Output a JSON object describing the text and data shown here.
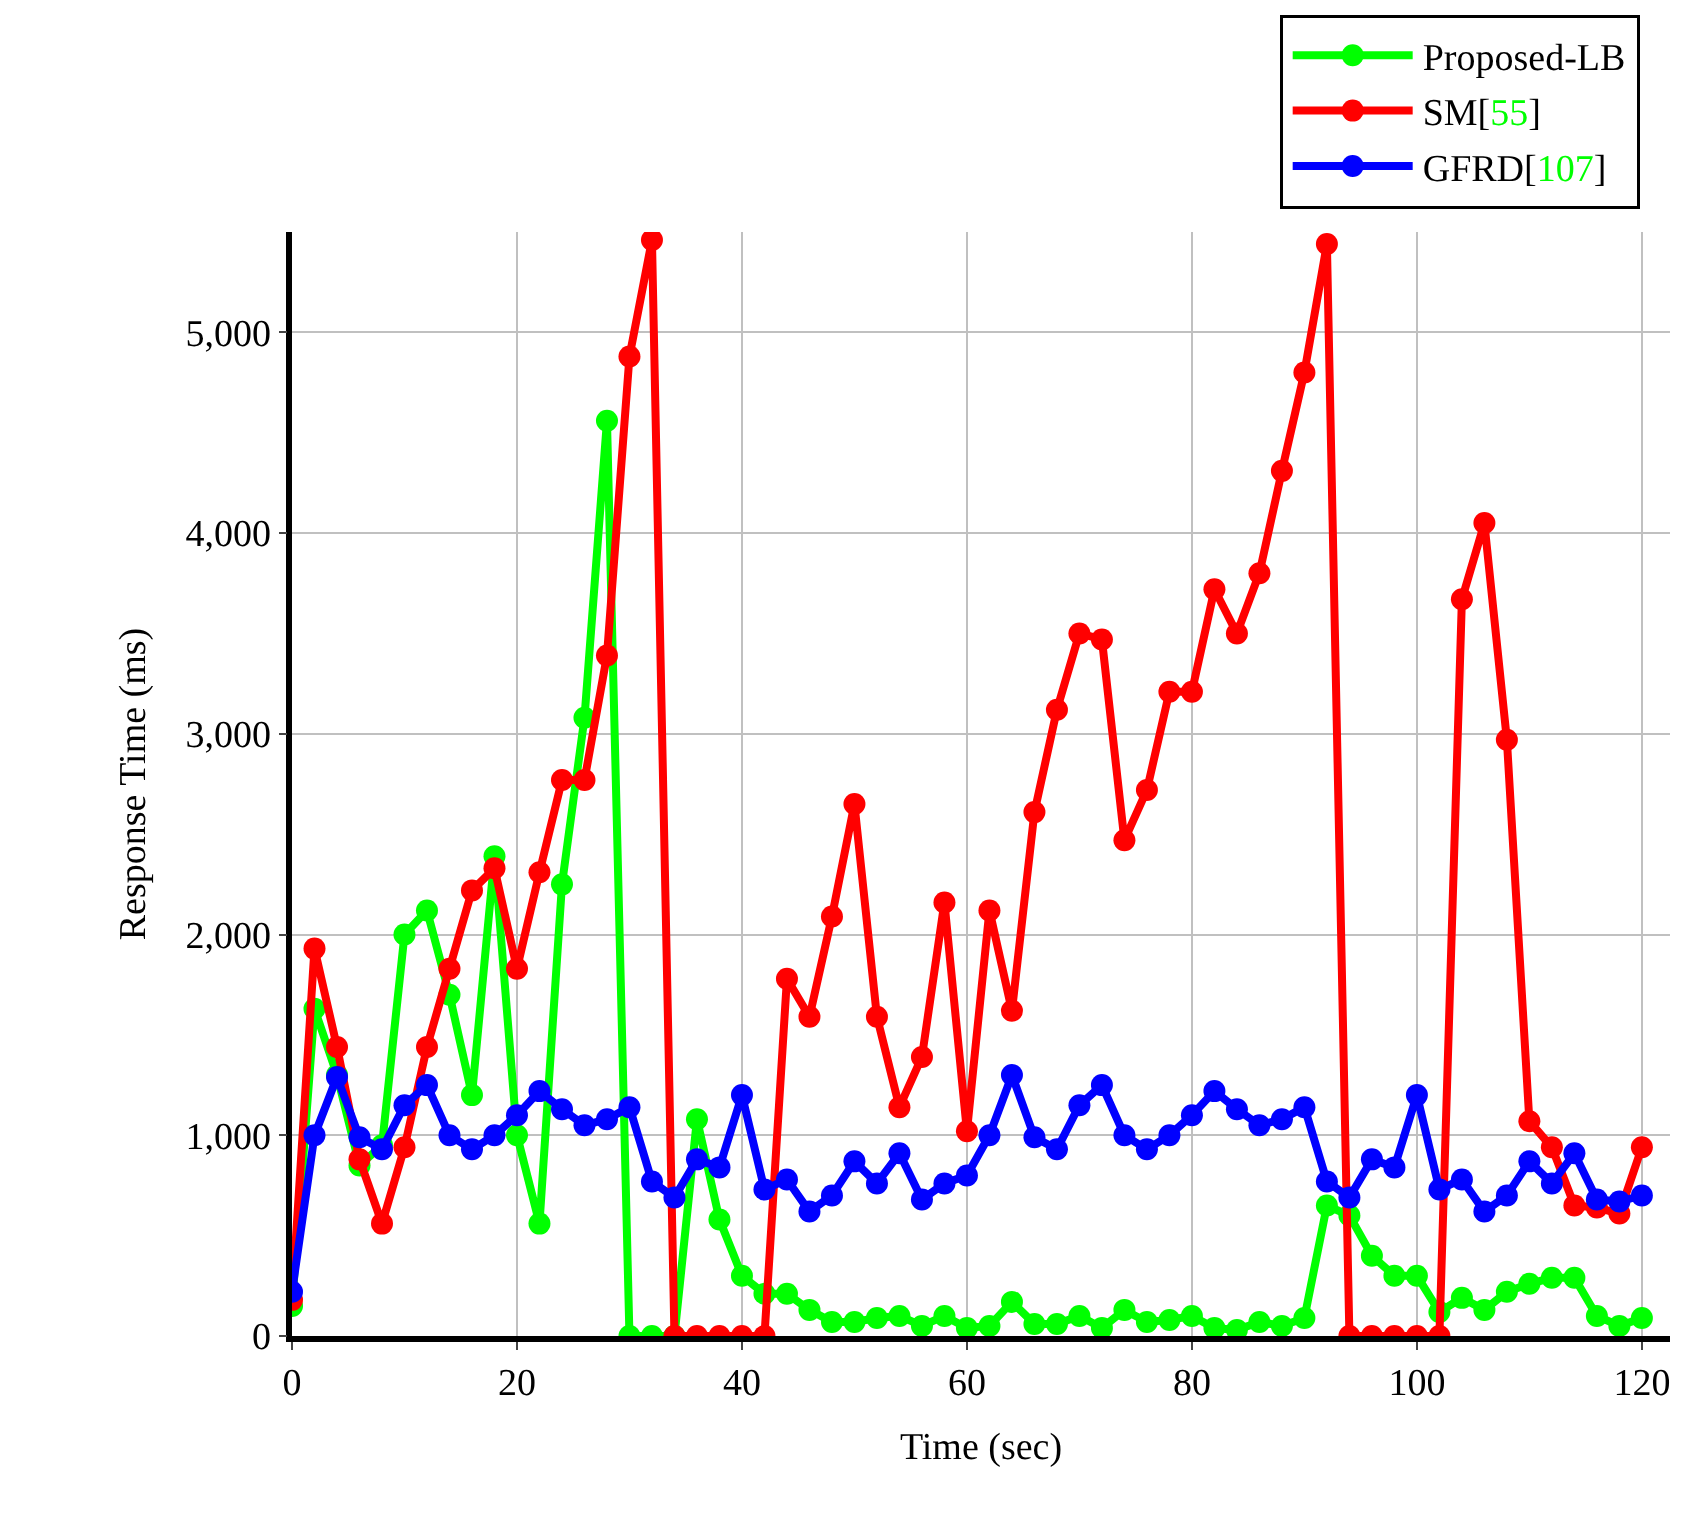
{
  "chart_data": {
    "type": "line",
    "xlabel": "Time (sec)",
    "ylabel": "Response Time (ms)",
    "x": [
      0,
      2,
      4,
      6,
      8,
      10,
      12,
      14,
      16,
      18,
      20,
      22,
      24,
      26,
      28,
      30,
      32,
      34,
      36,
      38,
      40,
      42,
      44,
      46,
      48,
      50,
      52,
      54,
      56,
      58,
      60,
      62,
      64,
      66,
      68,
      70,
      72,
      74,
      76,
      78,
      80,
      82,
      84,
      86,
      88,
      90,
      92,
      94,
      96,
      98,
      100,
      102,
      104,
      106,
      108,
      110,
      112,
      114,
      116,
      118,
      120
    ],
    "series": [
      {
        "name": "Proposed-LB",
        "color": "#00ff00",
        "values": [
          150,
          1630,
          1300,
          850,
          950,
          2000,
          2120,
          1700,
          1200,
          2390,
          1000,
          560,
          2250,
          3080,
          4560,
          0,
          0,
          0,
          1080,
          580,
          300,
          210,
          210,
          130,
          70,
          70,
          90,
          100,
          50,
          100,
          40,
          50,
          170,
          60,
          60,
          100,
          40,
          130,
          70,
          80,
          100,
          40,
          30,
          70,
          50,
          90,
          650,
          600,
          400,
          300,
          300,
          120,
          190,
          130,
          220,
          260,
          290,
          290,
          100,
          50,
          90
        ]
      },
      {
        "name": "SM[55]",
        "color": "#ff0000",
        "values": [
          180,
          1930,
          1440,
          880,
          560,
          940,
          1440,
          1830,
          2220,
          2330,
          1830,
          2310,
          2770,
          2770,
          3390,
          4880,
          5460,
          0,
          0,
          0,
          0,
          0,
          1780,
          1590,
          2090,
          2650,
          1590,
          1140,
          1390,
          2160,
          1020,
          2120,
          1620,
          2610,
          3120,
          3500,
          3470,
          2470,
          2720,
          3210,
          3210,
          3720,
          3500,
          3800,
          4310,
          4800,
          5440,
          0,
          0,
          0,
          0,
          0,
          3670,
          4050,
          2970,
          1070,
          940,
          650,
          640,
          610,
          940
        ]
      },
      {
        "name": "GFRD[107]",
        "color": "#0000ff",
        "values": [
          220,
          1000,
          1290,
          990,
          930,
          1150,
          1250,
          1000,
          930,
          1000,
          1100,
          1220,
          1130,
          1050,
          1080,
          1140,
          770,
          690,
          880,
          840,
          1200,
          730,
          780,
          620,
          700,
          870,
          760,
          910,
          680,
          760,
          800,
          1000,
          1300,
          990,
          930,
          1150,
          1250,
          1000,
          930,
          1000,
          1100,
          1220,
          1130,
          1050,
          1080,
          1140,
          770,
          690,
          880,
          840,
          1200,
          730,
          780,
          620,
          700,
          870,
          760,
          910,
          680,
          670,
          700
        ]
      }
    ],
    "xlim": [
      0,
      122.5
    ],
    "ylim": [
      0,
      5500
    ],
    "xticks": [
      0,
      20,
      40,
      60,
      80,
      100,
      120
    ],
    "yticks": [
      0,
      {
        "value": 1000,
        "label": "1,000"
      },
      {
        "value": 2000,
        "label": "2,000"
      },
      {
        "value": 3000,
        "label": "3,000"
      },
      {
        "value": 4000,
        "label": "4,000"
      },
      {
        "value": 5000,
        "label": "5,000"
      }
    ],
    "grid": true,
    "legend": "top right",
    "marker": "circle",
    "line_style": "solid"
  }
}
